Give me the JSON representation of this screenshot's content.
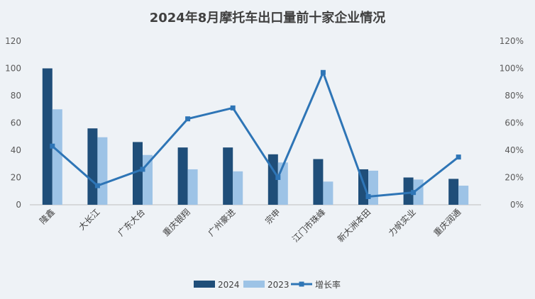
{
  "chart_data": {
    "type": "bar",
    "title": "2024年8月摩托车出口量前十家企业情况",
    "categories": [
      "隆鑫",
      "大长江",
      "广东大台",
      "重庆银翔",
      "广州豪进",
      "宗申",
      "江门市珠峰",
      "新大洲本田",
      "力帆实业",
      "重庆润通"
    ],
    "series": [
      {
        "name": "2024",
        "type": "bar",
        "axis": "left",
        "color": "#1f4e79",
        "values": [
          100,
          56,
          46,
          42,
          42,
          37,
          33.5,
          26,
          20,
          19
        ]
      },
      {
        "name": "2023",
        "type": "bar",
        "axis": "left",
        "color": "#9dc3e6",
        "values": [
          70,
          49.5,
          36.5,
          26,
          24.5,
          31,
          17,
          25,
          18.5,
          14
        ]
      },
      {
        "name": "增长率",
        "type": "line",
        "axis": "right",
        "color": "#2e75b6",
        "values": [
          0.43,
          0.14,
          0.26,
          0.63,
          0.71,
          0.2,
          0.97,
          0.06,
          0.09,
          0.35
        ]
      }
    ],
    "y_left": {
      "min": 0,
      "max": 120,
      "ticks": [
        "0",
        "20",
        "40",
        "60",
        "80",
        "100",
        "120"
      ]
    },
    "y_right": {
      "min": 0,
      "max": 1.2,
      "ticks": [
        "0%",
        "20%",
        "40%",
        "60%",
        "80%",
        "100%",
        "120%"
      ]
    },
    "grid": false,
    "legend_position": "bottom"
  }
}
